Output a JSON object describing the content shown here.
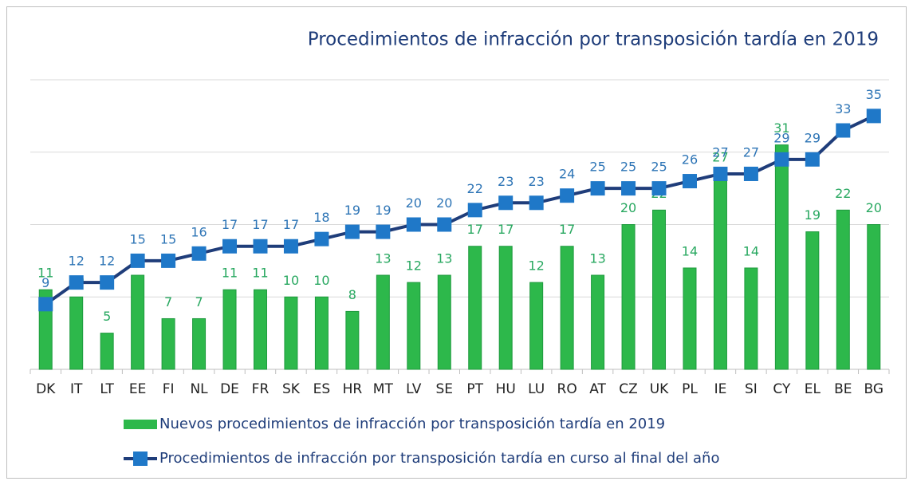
{
  "chart_data": {
    "type": "combo",
    "title": "Procedimientos de infracción por transposición tardía en 2019",
    "categories": [
      "DK",
      "IT",
      "LT",
      "EE",
      "FI",
      "NL",
      "DE",
      "FR",
      "SK",
      "ES",
      "HR",
      "MT",
      "LV",
      "SE",
      "PT",
      "HU",
      "LU",
      "RO",
      "AT",
      "CZ",
      "UK",
      "PL",
      "IE",
      "SI",
      "CY",
      "EL",
      "BE",
      "BG"
    ],
    "series": [
      {
        "name": "Nuevos procedimientos de infracción por transposición tardía en 2019",
        "type": "bar",
        "color": "#2db84b",
        "label_color": "#28a860",
        "values": [
          11,
          10,
          5,
          13,
          7,
          7,
          11,
          11,
          10,
          10,
          8,
          13,
          12,
          13,
          17,
          17,
          12,
          17,
          13,
          20,
          22,
          14,
          27,
          14,
          31,
          19,
          22,
          20
        ]
      },
      {
        "name": "Procedimientos de infracción por transposición tardía en curso al final del año",
        "type": "line",
        "color": "#1f3d7a",
        "marker_color": "#1f78c8",
        "label_color": "#2e75b6",
        "values": [
          9,
          12,
          12,
          15,
          15,
          16,
          17,
          17,
          17,
          18,
          19,
          19,
          20,
          20,
          22,
          23,
          23,
          24,
          25,
          25,
          25,
          26,
          27,
          27,
          29,
          29,
          33,
          35
        ]
      }
    ],
    "ylim": [
      0,
      40
    ],
    "yticks": [
      0,
      10,
      20,
      30,
      40
    ],
    "grid": true
  }
}
